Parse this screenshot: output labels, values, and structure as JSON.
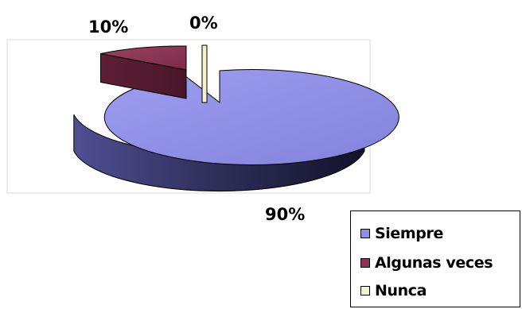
{
  "chart_data": {
    "type": "pie",
    "variant": "3d",
    "categories": [
      "Siempre",
      "Algunas veces",
      "Nunca"
    ],
    "values": [
      90,
      10,
      0
    ],
    "data_labels": [
      "90%",
      "10%",
      "0%"
    ],
    "series": [
      {
        "name": "",
        "values": [
          90,
          10,
          0
        ]
      }
    ],
    "colors": [
      "#8f8fe8",
      "#8a3455",
      "#f2f2cc"
    ],
    "legend_position": "bottom-right",
    "legend_entries": [
      "Siempre",
      "Algunas veces",
      "Nunca"
    ]
  }
}
